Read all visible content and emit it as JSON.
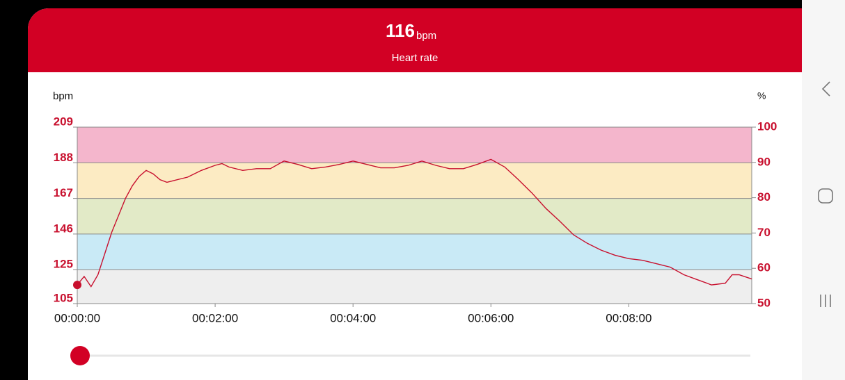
{
  "header": {
    "value": 116,
    "unit": "bpm",
    "label": "Heart rate"
  },
  "chart_data": {
    "type": "line",
    "y_axis_label": "bpm",
    "y2_axis_label": "%",
    "x": [
      0,
      6,
      12,
      18,
      24,
      30,
      36,
      42,
      48,
      54,
      60,
      66,
      72,
      78,
      84,
      96,
      108,
      120,
      126,
      132,
      144,
      156,
      168,
      180,
      192,
      204,
      216,
      228,
      240,
      252,
      264,
      276,
      288,
      300,
      312,
      324,
      336,
      348,
      360,
      372,
      384,
      396,
      408,
      420,
      432,
      444,
      456,
      468,
      480,
      492,
      504,
      516,
      528,
      540,
      552,
      564,
      570,
      576,
      587
    ],
    "series": [
      {
        "name": "Heart rate",
        "color": "#c8102e",
        "values": [
          116,
          121,
          115,
          122,
          134.5,
          147,
          157,
          167,
          174.5,
          180,
          183.5,
          181.5,
          178,
          176.5,
          177.5,
          179.5,
          183.5,
          186.5,
          187.5,
          185.5,
          183.5,
          184.5,
          184.5,
          189,
          187,
          184.5,
          185.5,
          187,
          189,
          187,
          185,
          185,
          186.5,
          189,
          186.5,
          184.5,
          184.5,
          187,
          190,
          185.5,
          178,
          170,
          161,
          153.5,
          145.5,
          140.5,
          136.5,
          133.5,
          131.5,
          130.5,
          128.5,
          126.5,
          122,
          119,
          116,
          117,
          122,
          122,
          119.5
        ]
      }
    ],
    "xlim": [
      0,
      587
    ],
    "xticks": [
      {
        "value": 0,
        "label": "00:00:00"
      },
      {
        "value": 120,
        "label": "00:02:00"
      },
      {
        "value": 240,
        "label": "00:04:00"
      },
      {
        "value": 360,
        "label": "00:06:00"
      },
      {
        "value": 480,
        "label": "00:08:00"
      }
    ],
    "ylim": [
      105,
      209
    ],
    "yticks": [
      105,
      125,
      146,
      167,
      188,
      209
    ],
    "y2lim": [
      50,
      100
    ],
    "y2ticks": [
      50,
      60,
      70,
      80,
      90,
      100
    ],
    "bands": [
      {
        "from": 105,
        "to": 125,
        "color": "#eeeeee"
      },
      {
        "from": 125,
        "to": 146,
        "color": "#c9eaf6"
      },
      {
        "from": 146,
        "to": 167,
        "color": "#e2eac7"
      },
      {
        "from": 167,
        "to": 188,
        "color": "#fcebc3"
      },
      {
        "from": 188,
        "to": 209,
        "color": "#f4b6cc"
      }
    ],
    "grid": true
  }
}
